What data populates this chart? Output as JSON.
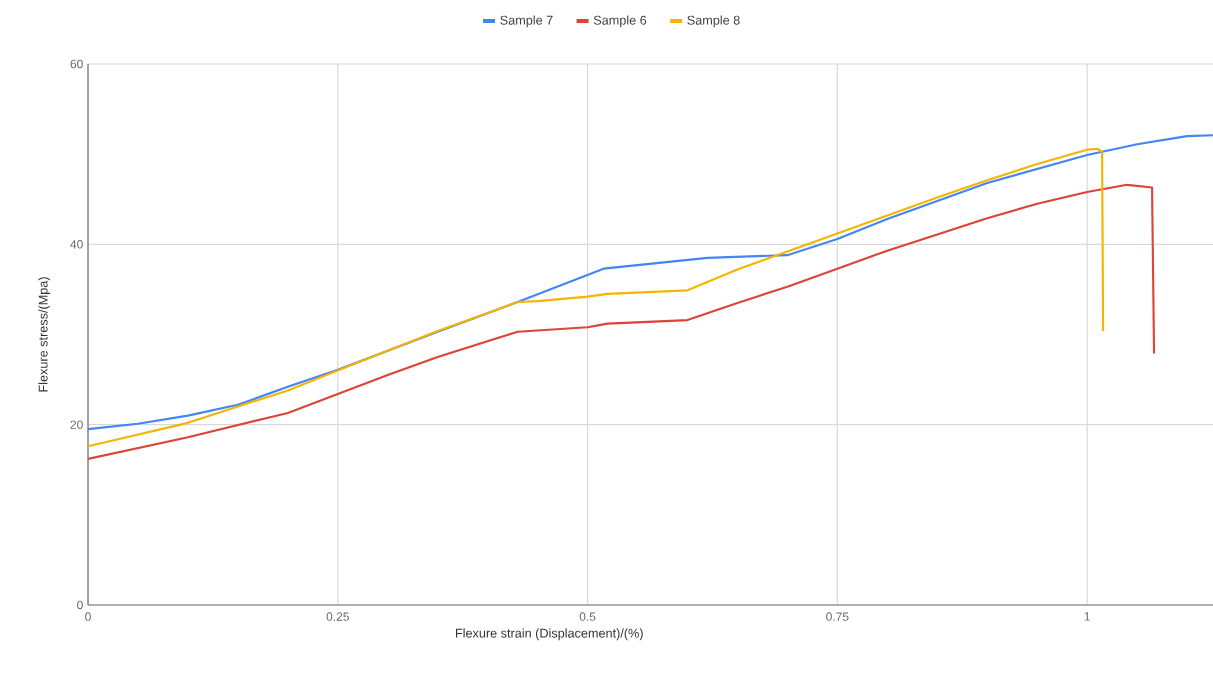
{
  "chart_data": {
    "type": "line",
    "xlabel": "Flexure strain (Displacement)/(%)",
    "ylabel": "Flexure stress/(Mpa)",
    "xlim": [
      0,
      1.126
    ],
    "ylim": [
      0,
      60
    ],
    "xticks": [
      0,
      0.25,
      0.5,
      0.75,
      1
    ],
    "yticks": [
      0,
      20,
      40,
      60
    ],
    "grid": true,
    "legend": "top",
    "marker": "none",
    "line_style": "solid",
    "series": [
      {
        "name": "Sample 7",
        "color": "#4285f4",
        "x": [
          0,
          0.05,
          0.1,
          0.15,
          0.2,
          0.25,
          0.3,
          0.35,
          0.43,
          0.516,
          0.62,
          0.7,
          0.75,
          0.8,
          0.9,
          1.0,
          1.05,
          1.1,
          1.126
        ],
        "values": [
          19.5,
          20.1,
          21,
          22.2,
          24.2,
          26.1,
          28.2,
          30.3,
          33.6,
          37.3,
          38.5,
          38.8,
          40.6,
          42.8,
          46.8,
          49.9,
          51.1,
          52,
          52.1
        ]
      },
      {
        "name": "Sample 6",
        "color": "#db4437",
        "x": [
          0,
          0.1,
          0.2,
          0.25,
          0.3,
          0.35,
          0.43,
          0.5,
          0.52,
          0.6,
          0.65,
          0.7,
          0.75,
          0.8,
          0.85,
          0.9,
          0.95,
          1.0,
          1.04,
          1.065,
          1.067
        ],
        "values": [
          16.2,
          18.6,
          21.3,
          23.4,
          25.5,
          27.5,
          30.3,
          30.8,
          31.2,
          31.6,
          33.5,
          35.3,
          37.3,
          39.3,
          41.1,
          42.9,
          44.5,
          45.8,
          46.6,
          46.3,
          27.9
        ]
      },
      {
        "name": "Sample 8",
        "color": "#f4b400",
        "x": [
          0,
          0.1,
          0.2,
          0.25,
          0.3,
          0.35,
          0.43,
          0.45,
          0.5,
          0.52,
          0.6,
          0.65,
          0.7,
          0.75,
          0.8,
          0.85,
          0.9,
          0.95,
          1.0,
          1.01,
          1.015,
          1.016
        ],
        "values": [
          17.6,
          20.2,
          23.8,
          26,
          28.2,
          30.4,
          33.6,
          33.7,
          34.2,
          34.5,
          34.9,
          37.2,
          39.2,
          41.2,
          43.2,
          45.2,
          47.1,
          48.9,
          50.5,
          50.6,
          50.3,
          30.4
        ]
      }
    ]
  }
}
